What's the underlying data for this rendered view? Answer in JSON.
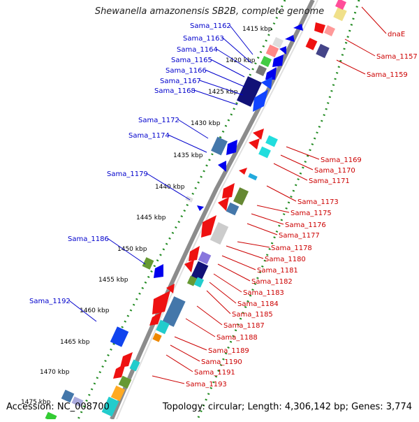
{
  "title": "Shewanella amazonensis SB2B, complete genome",
  "footer": {
    "accession": "Accession: NC_008700",
    "topology": "Topology: circular; Length: 4,306,142 bp; Genes: 3,774"
  },
  "scale_labels": [
    "1415 kbp",
    "1420 kbp",
    "1425 kbp",
    "1430 kbp",
    "1435 kbp",
    "1440 kbp",
    "1445 kbp",
    "1450 kbp",
    "1455 kbp",
    "1460 kbp",
    "1465 kbp",
    "1470 kbp",
    "1475 kbp"
  ],
  "left_labels": [
    "Sama_1162",
    "Sama_1163",
    "Sama_1164",
    "Sama_1165",
    "Sama_1166",
    "Sama_1167",
    "Sama_1168",
    "Sama_1172",
    "Sama_1174",
    "Sama_1179",
    "Sama_1186",
    "Sama_1192"
  ],
  "right_labels": [
    "dnaE",
    "Sama_1157",
    "Sama_1159",
    "Sama_1169",
    "Sama_1170",
    "Sama_1171",
    "Sama_1173",
    "Sama_1175",
    "Sama_1176",
    "Sama_1177",
    "Sama_1178",
    "Sama_1180",
    "Sama_1181",
    "Sama_1182",
    "Sama_1183",
    "Sama_1184",
    "Sama_1185",
    "Sama_1187",
    "Sama_1188",
    "Sama_1189",
    "Sama_1190",
    "Sama_1191",
    "Sama_1193"
  ],
  "colors": {
    "left_label": "#0000cc",
    "right_label": "#cc0000",
    "dotted_track": "#228b22",
    "backbone": "#888888"
  }
}
